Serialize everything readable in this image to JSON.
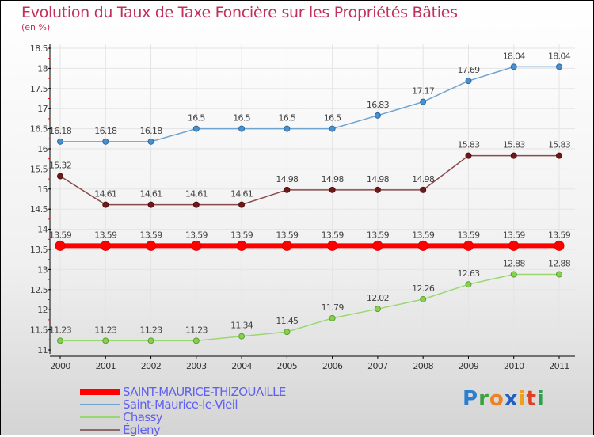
{
  "chart_data": {
    "type": "line",
    "title": "Evolution du Taux de Taxe Foncière sur les Propriétés Bâties",
    "subtitle": "(en %)",
    "x": [
      "2000",
      "2001",
      "2002",
      "2003",
      "2004",
      "2005",
      "2006",
      "2007",
      "2008",
      "2009",
      "2010",
      "2011"
    ],
    "ylim": [
      11,
      18.5
    ],
    "yticks": [
      "11",
      "11.5",
      "12",
      "12.5",
      "13",
      "13.5",
      "14",
      "14.5",
      "15",
      "15.5",
      "16",
      "16.5",
      "17",
      "17.5",
      "18",
      "18.5"
    ],
    "series": [
      {
        "name": "SAINT-MAURICE-THIZOUAILLE",
        "color": "#ff0000",
        "values": [
          13.59,
          13.59,
          13.59,
          13.59,
          13.59,
          13.59,
          13.59,
          13.59,
          13.59,
          13.59,
          13.59,
          13.59
        ]
      },
      {
        "name": "Saint-Maurice-le-Vieil",
        "color": "#6fa3d0",
        "values": [
          16.18,
          16.18,
          16.18,
          16.5,
          16.5,
          16.5,
          16.5,
          16.83,
          17.17,
          17.69,
          18.04,
          18.04
        ]
      },
      {
        "name": "Chassy",
        "color": "#99d870",
        "values": [
          11.23,
          11.23,
          11.23,
          11.23,
          11.34,
          11.45,
          11.79,
          12.02,
          12.26,
          12.63,
          12.88,
          12.88
        ]
      },
      {
        "name": "Égleny",
        "color": "#8b4a4a",
        "values": [
          15.32,
          14.61,
          14.61,
          14.61,
          14.61,
          14.98,
          14.98,
          14.98,
          14.98,
          15.83,
          15.83,
          15.83
        ]
      }
    ],
    "legend": "bottom-left"
  },
  "logo": "Proxiti"
}
